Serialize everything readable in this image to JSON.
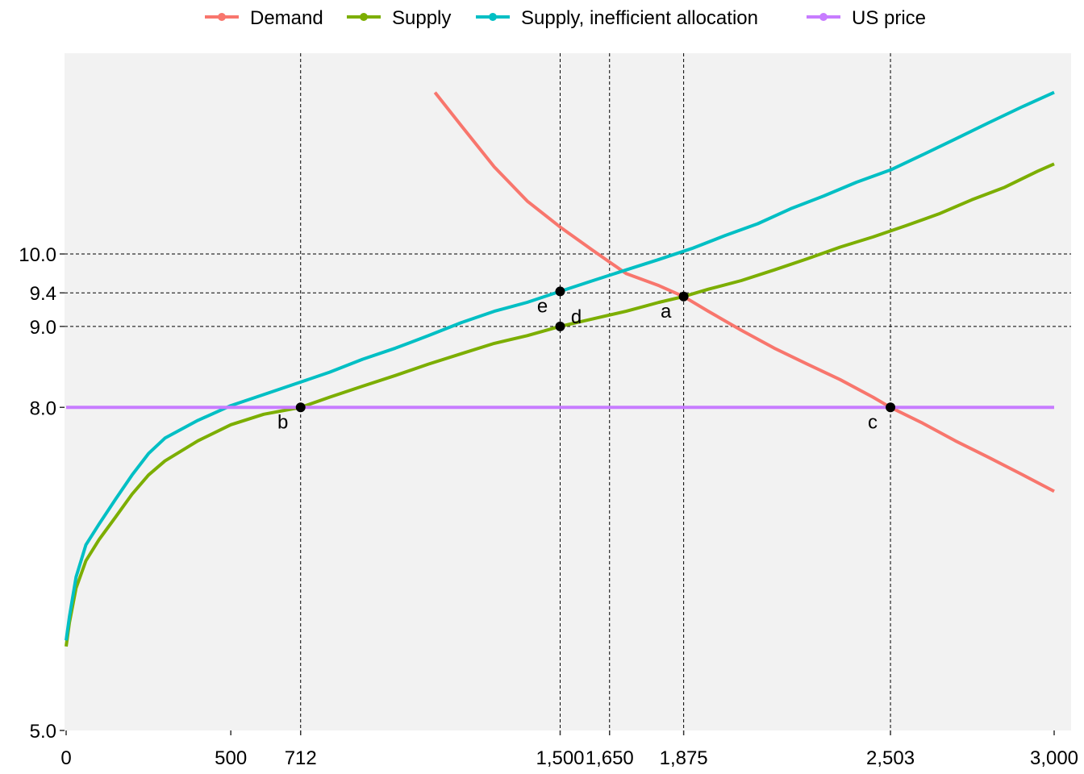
{
  "chart_data": {
    "type": "line",
    "title": "",
    "xlabel": "",
    "ylabel": "",
    "xlim": [
      0,
      3000
    ],
    "ylim": [
      5.0,
      13.2
    ],
    "log_y": true,
    "background": "#f2f2f2",
    "grid": false,
    "legend_position": "top",
    "x_ticks": [
      0,
      500,
      712,
      1500,
      1650,
      1875,
      2503,
      3000
    ],
    "x_tick_labels": [
      "0",
      "500",
      "712",
      "1,500",
      "1,650",
      "1,875",
      "2,503",
      "3,000"
    ],
    "y_ticks": [
      5.0,
      8.0,
      9.0,
      9.4,
      10.0
    ],
    "y_tick_labels": [
      "5.0",
      "8.0",
      "9.0",
      "9.4",
      "10.0"
    ],
    "reference_lines": {
      "vertical": [
        712,
        1500,
        1650,
        1875,
        2503
      ],
      "horizontal": [
        9.0,
        9.45,
        10.0
      ]
    },
    "series": [
      {
        "name": "Demand",
        "color": "#f8766d",
        "x": [
          1120,
          1200,
          1300,
          1400,
          1500,
          1600,
          1700,
          1800,
          1875,
          1950,
          2050,
          2150,
          2250,
          2350,
          2450,
          2503,
          2600,
          2700,
          2800,
          2900,
          3000
        ],
        "y": [
          12.65,
          12.05,
          11.35,
          10.8,
          10.4,
          10.05,
          9.72,
          9.55,
          9.4,
          9.2,
          8.95,
          8.72,
          8.52,
          8.33,
          8.12,
          8.0,
          7.82,
          7.62,
          7.44,
          7.26,
          7.08
        ]
      },
      {
        "name": "Supply",
        "color": "#7cae00",
        "x": [
          0,
          10,
          30,
          60,
          100,
          150,
          200,
          250,
          300,
          400,
          500,
          600,
          712,
          800,
          900,
          1000,
          1100,
          1200,
          1300,
          1400,
          1500,
          1600,
          1700,
          1800,
          1875,
          1950,
          2050,
          2150,
          2250,
          2350,
          2450,
          2550,
          2650,
          2750,
          2850,
          2950,
          3000
        ],
        "y": [
          5.65,
          5.85,
          6.15,
          6.4,
          6.6,
          6.82,
          7.05,
          7.25,
          7.4,
          7.62,
          7.8,
          7.92,
          8.0,
          8.12,
          8.25,
          8.38,
          8.52,
          8.65,
          8.78,
          8.88,
          9.0,
          9.1,
          9.2,
          9.32,
          9.4,
          9.5,
          9.62,
          9.77,
          9.93,
          10.1,
          10.25,
          10.42,
          10.6,
          10.82,
          11.02,
          11.28,
          11.4
        ]
      },
      {
        "name": "Supply, inefficient allocation",
        "color": "#00bfc4",
        "x": [
          0,
          10,
          30,
          60,
          100,
          150,
          200,
          250,
          300,
          400,
          500,
          600,
          712,
          800,
          900,
          1000,
          1100,
          1200,
          1300,
          1400,
          1500,
          1600,
          1700,
          1800,
          1900,
          2000,
          2100,
          2200,
          2300,
          2400,
          2503,
          2600,
          2700,
          2800,
          2900,
          3000
        ],
        "y": [
          5.7,
          5.9,
          6.25,
          6.55,
          6.75,
          7.0,
          7.25,
          7.48,
          7.65,
          7.85,
          8.02,
          8.15,
          8.3,
          8.42,
          8.58,
          8.72,
          8.88,
          9.05,
          9.2,
          9.32,
          9.47,
          9.62,
          9.77,
          9.92,
          10.08,
          10.27,
          10.45,
          10.68,
          10.88,
          11.1,
          11.3,
          11.55,
          11.82,
          12.1,
          12.38,
          12.65
        ]
      },
      {
        "name": "US price",
        "color": "#c77cff",
        "x": [
          0,
          3000
        ],
        "y": [
          8.0,
          8.0
        ]
      }
    ],
    "points": [
      {
        "label": "a",
        "x": 1875,
        "y": 9.4
      },
      {
        "label": "b",
        "x": 712,
        "y": 8.0
      },
      {
        "label": "c",
        "x": 2503,
        "y": 8.0
      },
      {
        "label": "d",
        "x": 1500,
        "y": 9.0
      },
      {
        "label": "e",
        "x": 1500,
        "y": 9.47
      }
    ]
  }
}
